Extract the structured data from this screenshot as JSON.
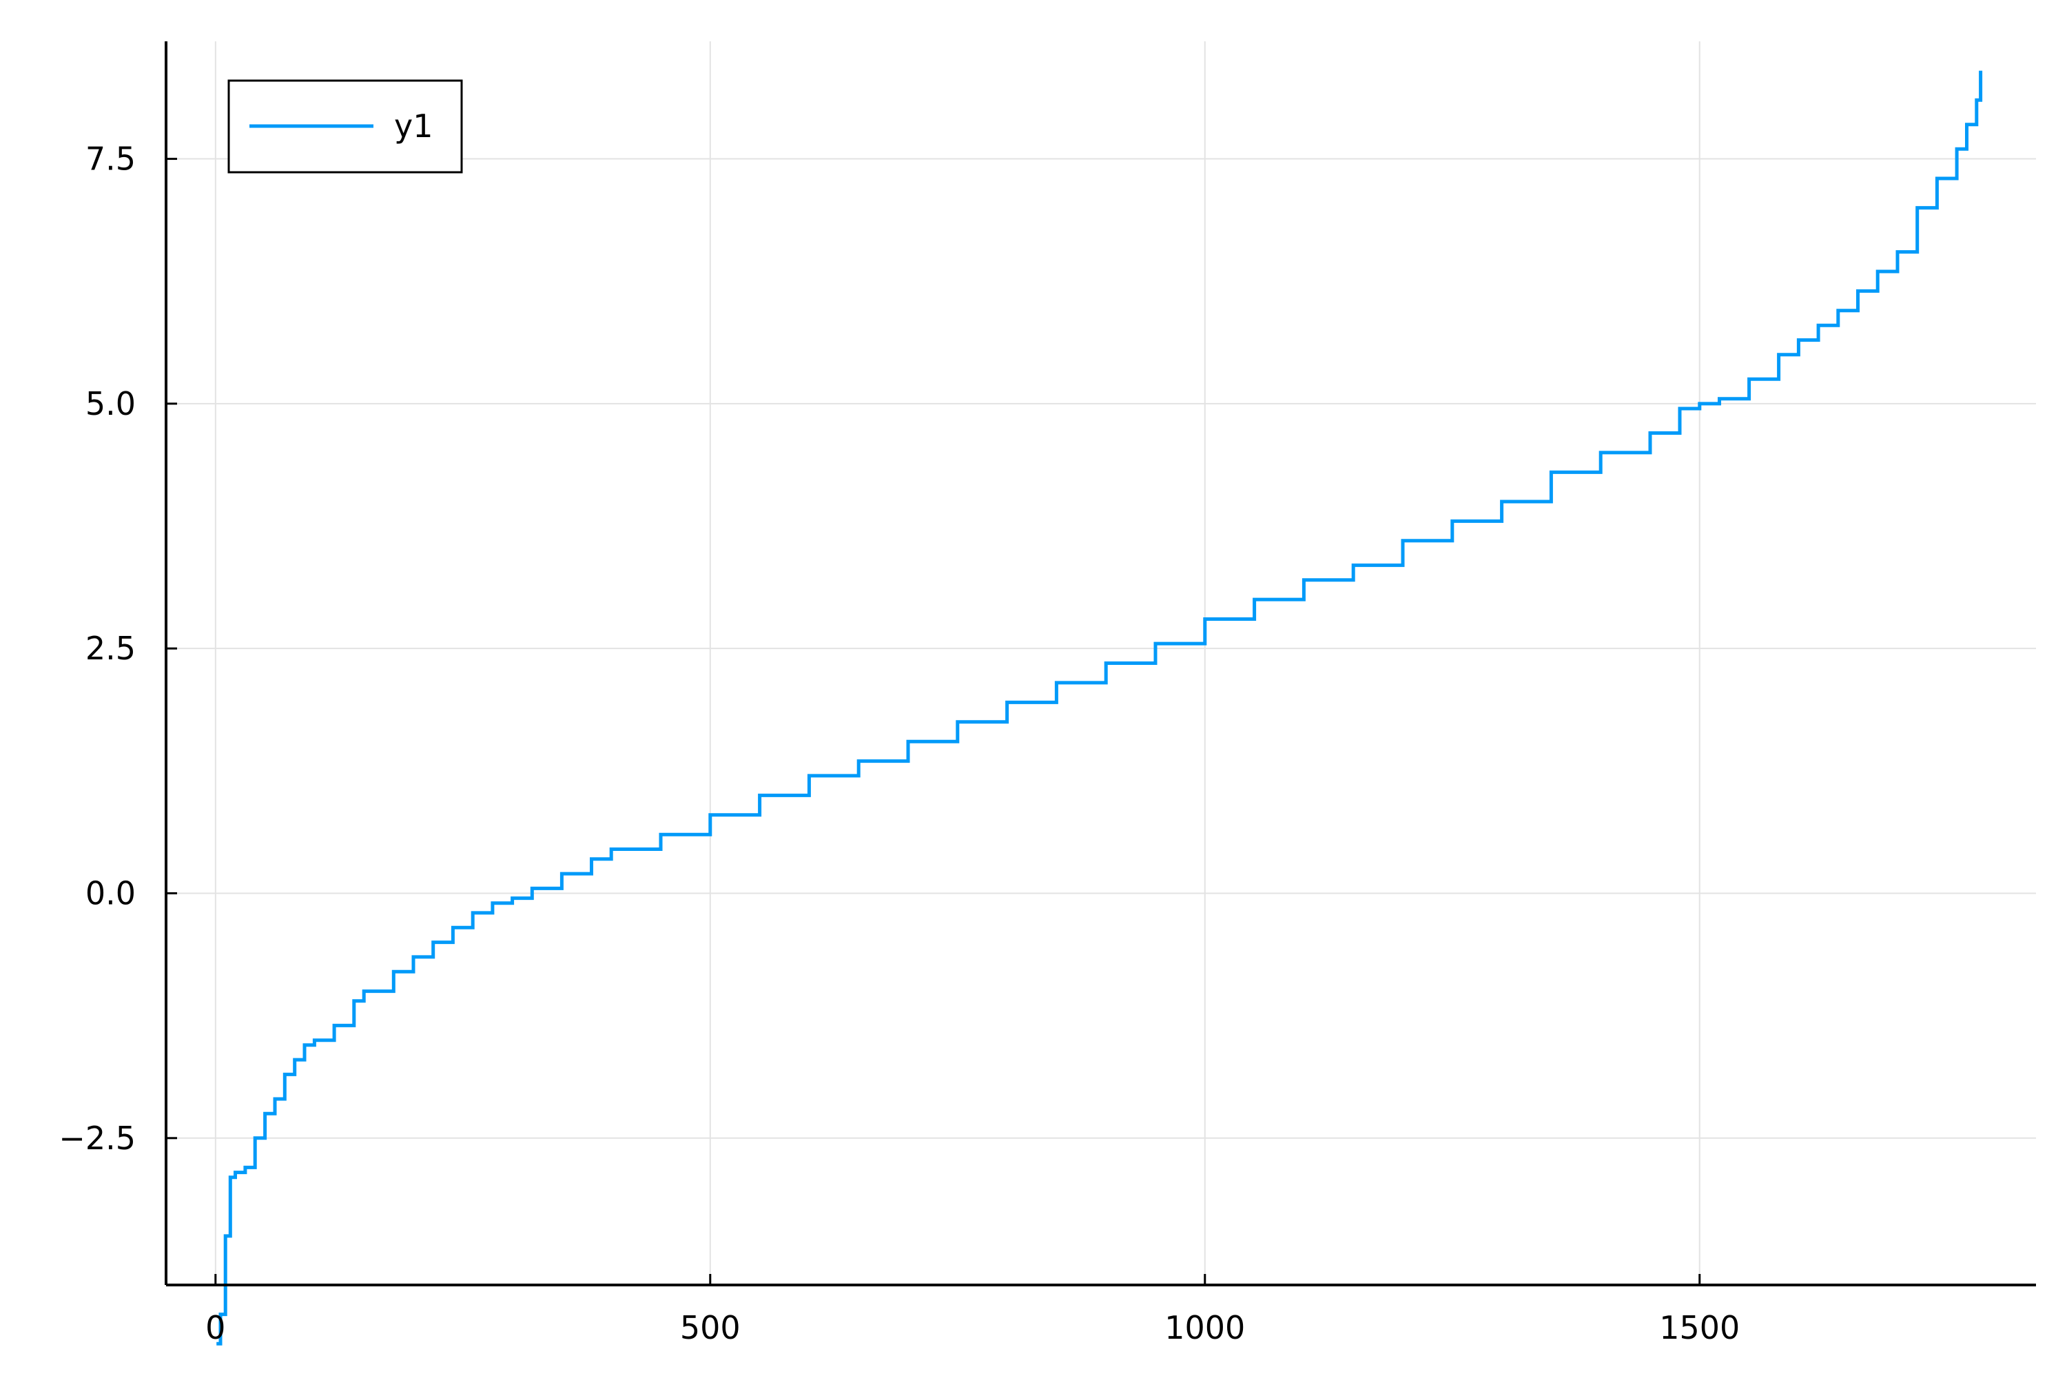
{
  "chart_data": {
    "type": "line",
    "title": "",
    "xlabel": "",
    "ylabel": "",
    "xlim": [
      -50,
      1840
    ],
    "ylim": [
      -4.0,
      8.7
    ],
    "xticks": [
      0,
      500,
      1000,
      1500
    ],
    "xtick_labels": [
      "0",
      "500",
      "1000",
      "1500"
    ],
    "yticks": [
      -2.5,
      0.0,
      2.5,
      5.0,
      7.5
    ],
    "ytick_labels": [
      "−2.5",
      "0.0",
      "2.5",
      "5.0",
      "7.5"
    ],
    "grid": true,
    "legend": {
      "position": "top-left",
      "entries": [
        "y1"
      ]
    },
    "series": [
      {
        "name": "y1",
        "color": "#009af9",
        "x": [
          1,
          5,
          10,
          15,
          20,
          30,
          40,
          50,
          60,
          70,
          80,
          90,
          100,
          120,
          140,
          150,
          160,
          180,
          200,
          220,
          240,
          260,
          280,
          300,
          320,
          350,
          380,
          400,
          450,
          500,
          550,
          600,
          650,
          700,
          750,
          800,
          850,
          900,
          950,
          1000,
          1050,
          1100,
          1150,
          1200,
          1250,
          1300,
          1350,
          1400,
          1450,
          1480,
          1500,
          1520,
          1550,
          1580,
          1600,
          1620,
          1640,
          1660,
          1680,
          1700,
          1720,
          1740,
          1760,
          1770,
          1780,
          1784
        ],
        "y": [
          -4.6,
          -4.3,
          -3.5,
          -2.9,
          -2.85,
          -2.8,
          -2.5,
          -2.25,
          -2.1,
          -1.85,
          -1.7,
          -1.55,
          -1.5,
          -1.35,
          -1.1,
          -1.0,
          -1.0,
          -0.8,
          -0.65,
          -0.5,
          -0.35,
          -0.2,
          -0.1,
          -0.05,
          0.05,
          0.2,
          0.35,
          0.45,
          0.6,
          0.8,
          1.0,
          1.2,
          1.35,
          1.55,
          1.75,
          1.95,
          2.15,
          2.35,
          2.55,
          2.8,
          3.0,
          3.2,
          3.35,
          3.6,
          3.8,
          4.0,
          4.3,
          4.5,
          4.7,
          4.95,
          5.0,
          5.05,
          5.25,
          5.5,
          5.65,
          5.8,
          5.95,
          6.15,
          6.35,
          6.55,
          7.0,
          7.3,
          7.6,
          7.85,
          8.1,
          8.4
        ]
      }
    ]
  }
}
